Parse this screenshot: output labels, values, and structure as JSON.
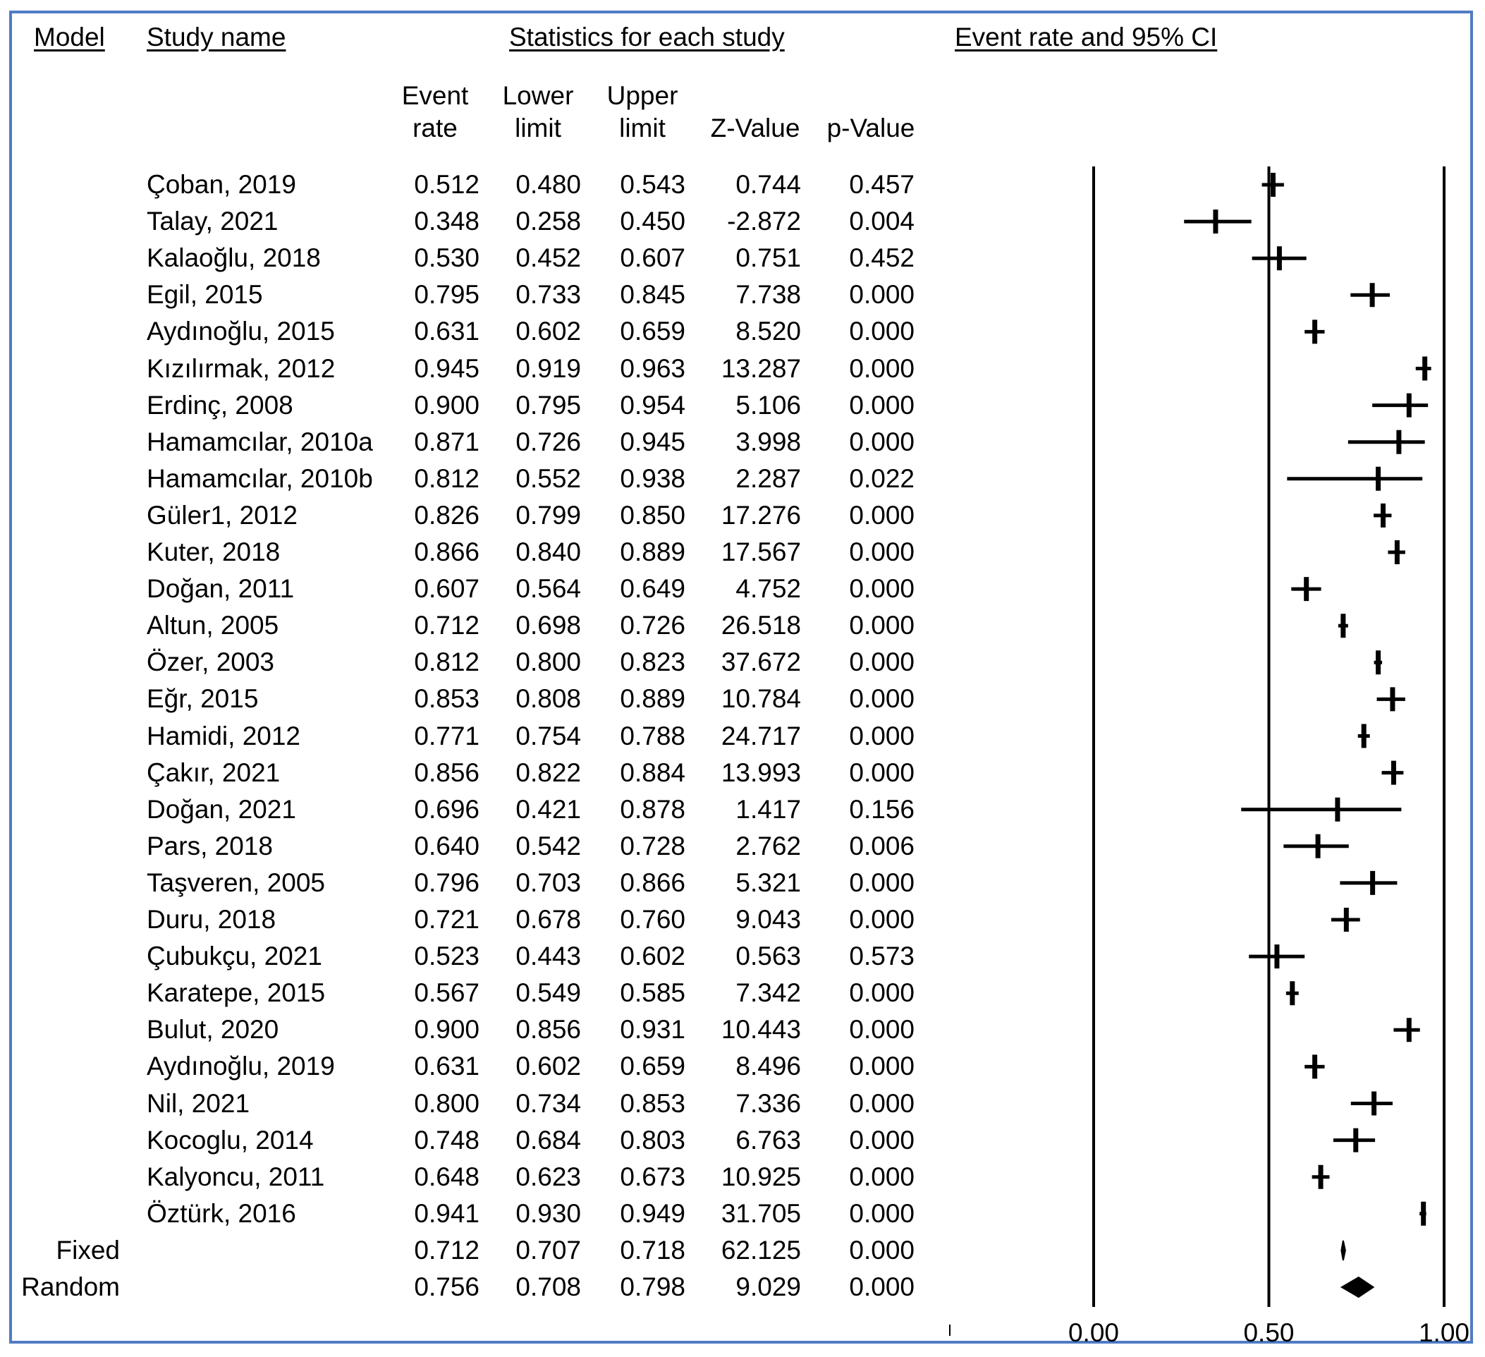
{
  "headers": {
    "model": "Model",
    "study_name": "Study name",
    "statistics": "Statistics for each study",
    "plot": "Event rate and 95% CI"
  },
  "columns": {
    "event_rate": [
      "Event",
      "rate"
    ],
    "lower_limit": [
      "Lower",
      "limit"
    ],
    "upper_limit": [
      "Upper",
      "limit"
    ],
    "z_value": "Z-Value",
    "p_value": "p-Value"
  },
  "studies": [
    {
      "name": "Çoban, 2019",
      "er": "0.512",
      "lo": "0.480",
      "hi": "0.543",
      "z": "0.744",
      "p": "0.457"
    },
    {
      "name": "Talay, 2021",
      "er": "0.348",
      "lo": "0.258",
      "hi": "0.450",
      "z": "-2.872",
      "p": "0.004"
    },
    {
      "name": "Kalaoğlu, 2018",
      "er": "0.530",
      "lo": "0.452",
      "hi": "0.607",
      "z": "0.751",
      "p": "0.452"
    },
    {
      "name": "Egil, 2015",
      "er": "0.795",
      "lo": "0.733",
      "hi": "0.845",
      "z": "7.738",
      "p": "0.000"
    },
    {
      "name": "Aydınoğlu, 2015",
      "er": "0.631",
      "lo": "0.602",
      "hi": "0.659",
      "z": "8.520",
      "p": "0.000"
    },
    {
      "name": "Kızılırmak, 2012",
      "er": "0.945",
      "lo": "0.919",
      "hi": "0.963",
      "z": "13.287",
      "p": "0.000"
    },
    {
      "name": "Erdinç, 2008",
      "er": "0.900",
      "lo": "0.795",
      "hi": "0.954",
      "z": "5.106",
      "p": "0.000"
    },
    {
      "name": "Hamamcılar, 2010a",
      "er": "0.871",
      "lo": "0.726",
      "hi": "0.945",
      "z": "3.998",
      "p": "0.000"
    },
    {
      "name": "Hamamcılar, 2010b",
      "er": "0.812",
      "lo": "0.552",
      "hi": "0.938",
      "z": "2.287",
      "p": "0.022"
    },
    {
      "name": "Güler1, 2012",
      "er": "0.826",
      "lo": "0.799",
      "hi": "0.850",
      "z": "17.276",
      "p": "0.000"
    },
    {
      "name": "Kuter, 2018",
      "er": "0.866",
      "lo": "0.840",
      "hi": "0.889",
      "z": "17.567",
      "p": "0.000"
    },
    {
      "name": "Doğan, 2011",
      "er": "0.607",
      "lo": "0.564",
      "hi": "0.649",
      "z": "4.752",
      "p": "0.000"
    },
    {
      "name": "Altun, 2005",
      "er": "0.712",
      "lo": "0.698",
      "hi": "0.726",
      "z": "26.518",
      "p": "0.000"
    },
    {
      "name": "Özer, 2003",
      "er": "0.812",
      "lo": "0.800",
      "hi": "0.823",
      "z": "37.672",
      "p": "0.000"
    },
    {
      "name": "Eğr, 2015",
      "er": "0.853",
      "lo": "0.808",
      "hi": "0.889",
      "z": "10.784",
      "p": "0.000"
    },
    {
      "name": "Hamidi, 2012",
      "er": "0.771",
      "lo": "0.754",
      "hi": "0.788",
      "z": "24.717",
      "p": "0.000"
    },
    {
      "name": "Çakır, 2021",
      "er": "0.856",
      "lo": "0.822",
      "hi": "0.884",
      "z": "13.993",
      "p": "0.000"
    },
    {
      "name": "Doğan, 2021",
      "er": "0.696",
      "lo": "0.421",
      "hi": "0.878",
      "z": "1.417",
      "p": "0.156"
    },
    {
      "name": "Pars, 2018",
      "er": "0.640",
      "lo": "0.542",
      "hi": "0.728",
      "z": "2.762",
      "p": "0.006"
    },
    {
      "name": "Taşveren, 2005",
      "er": "0.796",
      "lo": "0.703",
      "hi": "0.866",
      "z": "5.321",
      "p": "0.000"
    },
    {
      "name": "Duru, 2018",
      "er": "0.721",
      "lo": "0.678",
      "hi": "0.760",
      "z": "9.043",
      "p": "0.000"
    },
    {
      "name": "Çubukçu, 2021",
      "er": "0.523",
      "lo": "0.443",
      "hi": "0.602",
      "z": "0.563",
      "p": "0.573"
    },
    {
      "name": "Karatepe, 2015",
      "er": "0.567",
      "lo": "0.549",
      "hi": "0.585",
      "z": "7.342",
      "p": "0.000"
    },
    {
      "name": "Bulut, 2020",
      "er": "0.900",
      "lo": "0.856",
      "hi": "0.931",
      "z": "10.443",
      "p": "0.000"
    },
    {
      "name": "Aydınoğlu, 2019",
      "er": "0.631",
      "lo": "0.602",
      "hi": "0.659",
      "z": "8.496",
      "p": "0.000"
    },
    {
      "name": "Nil, 2021",
      "er": "0.800",
      "lo": "0.734",
      "hi": "0.853",
      "z": "7.336",
      "p": "0.000"
    },
    {
      "name": "Kocoglu, 2014",
      "er": "0.748",
      "lo": "0.684",
      "hi": "0.803",
      "z": "6.763",
      "p": "0.000"
    },
    {
      "name": "Kalyoncu, 2011",
      "er": "0.648",
      "lo": "0.623",
      "hi": "0.673",
      "z": "10.925",
      "p": "0.000"
    },
    {
      "name": "Öztürk, 2016",
      "er": "0.941",
      "lo": "0.930",
      "hi": "0.949",
      "z": "31.705",
      "p": "0.000"
    }
  ],
  "pooled": [
    {
      "name": "Fixed",
      "er": "0.712",
      "lo": "0.707",
      "hi": "0.718",
      "z": "62.125",
      "p": "0.000"
    },
    {
      "name": "Random",
      "er": "0.756",
      "lo": "0.708",
      "hi": "0.798",
      "z": "9.029",
      "p": "0.000"
    }
  ],
  "chart_data": {
    "type": "forest",
    "title": "Event rate and 95% CI",
    "x_range": [
      0.0,
      1.0
    ],
    "x_ticks": [
      "0.00",
      "0.50",
      "1.00"
    ],
    "reference_lines": [
      0.0,
      0.5,
      1.0
    ],
    "studies": [
      {
        "name": "Çoban, 2019",
        "er": 0.512,
        "lo": 0.48,
        "hi": 0.543
      },
      {
        "name": "Talay, 2021",
        "er": 0.348,
        "lo": 0.258,
        "hi": 0.45
      },
      {
        "name": "Kalaoğlu, 2018",
        "er": 0.53,
        "lo": 0.452,
        "hi": 0.607
      },
      {
        "name": "Egil, 2015",
        "er": 0.795,
        "lo": 0.733,
        "hi": 0.845
      },
      {
        "name": "Aydınoğlu, 2015",
        "er": 0.631,
        "lo": 0.602,
        "hi": 0.659
      },
      {
        "name": "Kızılırmak, 2012",
        "er": 0.945,
        "lo": 0.919,
        "hi": 0.963
      },
      {
        "name": "Erdinç, 2008",
        "er": 0.9,
        "lo": 0.795,
        "hi": 0.954
      },
      {
        "name": "Hamamcılar, 2010a",
        "er": 0.871,
        "lo": 0.726,
        "hi": 0.945
      },
      {
        "name": "Hamamcılar, 2010b",
        "er": 0.812,
        "lo": 0.552,
        "hi": 0.938
      },
      {
        "name": "Güler1, 2012",
        "er": 0.826,
        "lo": 0.799,
        "hi": 0.85
      },
      {
        "name": "Kuter, 2018",
        "er": 0.866,
        "lo": 0.84,
        "hi": 0.889
      },
      {
        "name": "Doğan, 2011",
        "er": 0.607,
        "lo": 0.564,
        "hi": 0.649
      },
      {
        "name": "Altun, 2005",
        "er": 0.712,
        "lo": 0.698,
        "hi": 0.726
      },
      {
        "name": "Özer, 2003",
        "er": 0.812,
        "lo": 0.8,
        "hi": 0.823
      },
      {
        "name": "Eğr, 2015",
        "er": 0.853,
        "lo": 0.808,
        "hi": 0.889
      },
      {
        "name": "Hamidi, 2012",
        "er": 0.771,
        "lo": 0.754,
        "hi": 0.788
      },
      {
        "name": "Çakır, 2021",
        "er": 0.856,
        "lo": 0.822,
        "hi": 0.884
      },
      {
        "name": "Doğan, 2021",
        "er": 0.696,
        "lo": 0.421,
        "hi": 0.878
      },
      {
        "name": "Pars, 2018",
        "er": 0.64,
        "lo": 0.542,
        "hi": 0.728
      },
      {
        "name": "Taşveren, 2005",
        "er": 0.796,
        "lo": 0.703,
        "hi": 0.866
      },
      {
        "name": "Duru, 2018",
        "er": 0.721,
        "lo": 0.678,
        "hi": 0.76
      },
      {
        "name": "Çubukçu, 2021",
        "er": 0.523,
        "lo": 0.443,
        "hi": 0.602
      },
      {
        "name": "Karatepe, 2015",
        "er": 0.567,
        "lo": 0.549,
        "hi": 0.585
      },
      {
        "name": "Bulut, 2020",
        "er": 0.9,
        "lo": 0.856,
        "hi": 0.931
      },
      {
        "name": "Aydınoğlu, 2019",
        "er": 0.631,
        "lo": 0.602,
        "hi": 0.659
      },
      {
        "name": "Nil, 2021",
        "er": 0.8,
        "lo": 0.734,
        "hi": 0.853
      },
      {
        "name": "Kocoglu, 2014",
        "er": 0.748,
        "lo": 0.684,
        "hi": 0.803
      },
      {
        "name": "Kalyoncu, 2011",
        "er": 0.648,
        "lo": 0.623,
        "hi": 0.673
      },
      {
        "name": "Öztürk, 2016",
        "er": 0.941,
        "lo": 0.93,
        "hi": 0.949
      }
    ],
    "pooled": [
      {
        "name": "Fixed",
        "er": 0.712,
        "lo": 0.707,
        "hi": 0.718
      },
      {
        "name": "Random",
        "er": 0.756,
        "lo": 0.708,
        "hi": 0.798
      }
    ]
  }
}
